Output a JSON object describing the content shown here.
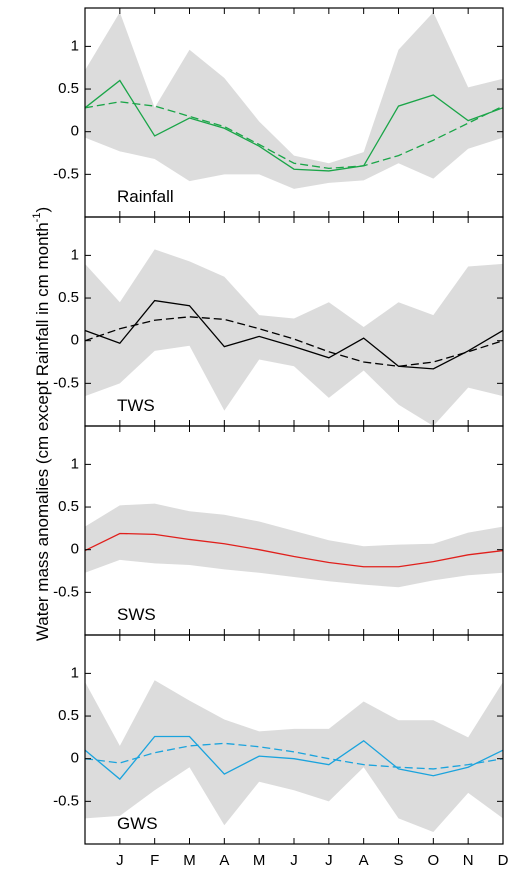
{
  "ylabel": {
    "main": "Water mass anomalies (cm except Rainfall in cm month",
    "sup": "-1",
    "close": ")"
  },
  "chart_data": {
    "type": "line",
    "x_categories": [
      "",
      "J",
      "F",
      "M",
      "A",
      "M",
      "J",
      "J",
      "A",
      "S",
      "O",
      "N",
      "D"
    ],
    "x_positions": [
      0,
      1,
      2,
      3,
      4,
      5,
      6,
      7,
      8,
      9,
      10,
      11,
      12
    ],
    "ylim": [
      -1.0,
      1.45
    ],
    "yticks": [
      1,
      0.5,
      0,
      -0.5
    ],
    "ytick_labels": [
      "1",
      "0.5",
      "0",
      "-0.5"
    ],
    "panels": [
      {
        "label": "Rainfall",
        "color": "#1aa548",
        "observed": [
          0.28,
          0.6,
          -0.05,
          0.16,
          0.04,
          -0.17,
          -0.44,
          -0.46,
          -0.4,
          0.3,
          0.43,
          0.13,
          0.28
        ],
        "fit": [
          0.28,
          0.35,
          0.3,
          0.18,
          0.06,
          -0.15,
          -0.37,
          -0.43,
          -0.4,
          -0.28,
          -0.1,
          0.1,
          0.3
        ],
        "band_upper": [
          0.72,
          1.4,
          0.28,
          0.96,
          0.63,
          0.12,
          -0.28,
          -0.37,
          -0.24,
          0.96,
          1.4,
          0.52,
          0.62
        ],
        "band_lower": [
          -0.07,
          -0.23,
          -0.32,
          -0.58,
          -0.5,
          -0.5,
          -0.67,
          -0.6,
          -0.57,
          -0.37,
          -0.55,
          -0.2,
          -0.07
        ]
      },
      {
        "label": "TWS",
        "color": "#000000",
        "observed": [
          0.12,
          -0.03,
          0.47,
          0.41,
          -0.07,
          0.05,
          -0.07,
          -0.2,
          0.03,
          -0.3,
          -0.33,
          -0.12,
          0.12
        ],
        "fit": [
          0.0,
          0.14,
          0.24,
          0.28,
          0.25,
          0.14,
          0.02,
          -0.13,
          -0.25,
          -0.3,
          -0.25,
          -0.13,
          0.0
        ],
        "band_upper": [
          0.9,
          0.45,
          1.07,
          0.93,
          0.75,
          0.3,
          0.26,
          0.45,
          0.16,
          0.45,
          0.3,
          0.87,
          0.9
        ],
        "band_lower": [
          -0.65,
          -0.5,
          -0.12,
          -0.06,
          -0.82,
          -0.22,
          -0.3,
          -0.67,
          -0.35,
          -0.75,
          -1.0,
          -0.55,
          -0.65
        ]
      },
      {
        "label": "SWS",
        "color": "#e0201c",
        "observed": [
          -0.01,
          0.19,
          0.18,
          0.12,
          0.07,
          0.0,
          -0.08,
          -0.15,
          -0.2,
          -0.2,
          -0.14,
          -0.06,
          -0.01
        ],
        "fit": [],
        "band_upper": [
          0.27,
          0.52,
          0.54,
          0.45,
          0.41,
          0.33,
          0.22,
          0.11,
          0.04,
          0.06,
          0.07,
          0.2,
          0.27
        ],
        "band_lower": [
          -0.27,
          -0.12,
          -0.16,
          -0.18,
          -0.23,
          -0.27,
          -0.32,
          -0.37,
          -0.41,
          -0.44,
          -0.36,
          -0.3,
          -0.27
        ]
      },
      {
        "label": "GWS",
        "color": "#1aa3dd",
        "observed": [
          0.1,
          -0.24,
          0.26,
          0.26,
          -0.18,
          0.03,
          0.0,
          -0.07,
          0.21,
          -0.12,
          -0.2,
          -0.1,
          0.1
        ],
        "fit": [
          0.0,
          -0.05,
          0.07,
          0.15,
          0.18,
          0.14,
          0.08,
          0.0,
          -0.07,
          -0.1,
          -0.12,
          -0.07,
          0.0
        ],
        "band_upper": [
          0.9,
          0.15,
          0.92,
          0.68,
          0.46,
          0.32,
          0.35,
          0.35,
          0.67,
          0.45,
          0.45,
          0.25,
          0.9
        ],
        "band_lower": [
          -0.7,
          -0.67,
          -0.37,
          -0.1,
          -0.78,
          -0.27,
          -0.37,
          -0.5,
          -0.1,
          -0.7,
          -0.86,
          -0.4,
          -0.7
        ]
      }
    ]
  }
}
